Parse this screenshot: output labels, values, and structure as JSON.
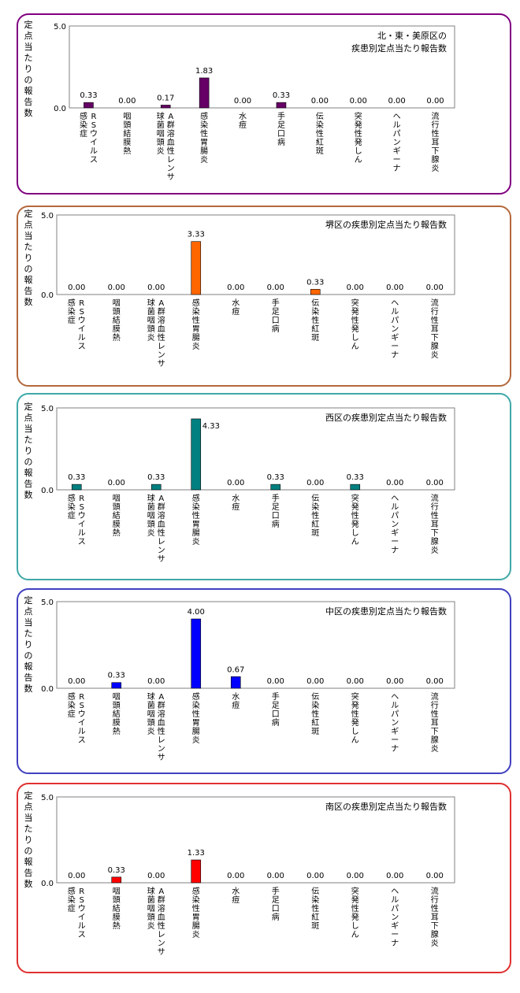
{
  "y_axis_title": "定点当たりの報告数",
  "chart_data": [
    {
      "type": "bar",
      "title": "北・東・美原区の疾患別定点当たり報告数",
      "title_lines": [
        "北・東・美原区の",
        "疾患別定点当たり報告数"
      ],
      "border_color": "#800080",
      "bar_color": "#660066",
      "ylim": [
        0,
        5.0
      ],
      "ytick_labels": [
        "5.0",
        "0.0"
      ],
      "categories": [
        "RSウイルス感染症",
        "咽頭結膜熱",
        "A群溶血性レンサ球菌咽頭炎",
        "感染性胃腸炎",
        "水痘",
        "手足口病",
        "伝染性紅斑",
        "突発性発しん",
        "ヘルパンギーナ",
        "流行性耳下腺炎"
      ],
      "category_lines": [
        [
          "RSウイルス",
          "感染症"
        ],
        [
          "咽頭結膜熱"
        ],
        [
          "A群溶血性レンサ",
          "球菌咽頭炎"
        ],
        [
          "感染性胃腸炎"
        ],
        [
          "水痘"
        ],
        [
          "手足口病"
        ],
        [
          "伝染性紅斑"
        ],
        [
          "突発性発しん"
        ],
        [
          "ヘルパンギーナ"
        ],
        [
          "流行性耳下腺炎"
        ]
      ],
      "values": [
        0.33,
        0.0,
        0.17,
        1.83,
        0.0,
        0.33,
        0.0,
        0.0,
        0.0,
        0.0
      ],
      "value_labels": [
        "0.33",
        "0.00",
        "0.17",
        "1.83",
        "0.00",
        "0.33",
        "0.00",
        "0.00",
        "0.00",
        "0.00"
      ]
    },
    {
      "type": "bar",
      "title": "堺区の疾患別定点当たり報告数",
      "title_lines": [
        "堺区の疾患別定点当たり報告数"
      ],
      "border_color": "#b4683c",
      "bar_color": "#ff6600",
      "ylim": [
        0,
        5.0
      ],
      "ytick_labels": [
        "5.0",
        "0.0"
      ],
      "categories": [
        "RSウイルス感染症",
        "咽頭結膜熱",
        "A群溶血性レンサ球菌咽頭炎",
        "感染性胃腸炎",
        "水痘",
        "手足口病",
        "伝染性紅斑",
        "突発性発しん",
        "ヘルパンギーナ",
        "流行性耳下腺炎"
      ],
      "category_lines": [
        [
          "RSウイルス",
          "感染症"
        ],
        [
          "咽頭結膜熱"
        ],
        [
          "A群溶血性レンサ",
          "球菌咽頭炎"
        ],
        [
          "感染性胃腸炎"
        ],
        [
          "水痘"
        ],
        [
          "手足口病"
        ],
        [
          "伝染性紅斑"
        ],
        [
          "突発性発しん"
        ],
        [
          "ヘルパンギーナ"
        ],
        [
          "流行性耳下腺炎"
        ]
      ],
      "values": [
        0.0,
        0.0,
        0.0,
        3.33,
        0.0,
        0.0,
        0.33,
        0.0,
        0.0,
        0.0
      ],
      "value_labels": [
        "0.00",
        "0.00",
        "0.00",
        "3.33",
        "0.00",
        "0.00",
        "0.33",
        "0.00",
        "0.00",
        "0.00"
      ]
    },
    {
      "type": "bar",
      "title": "西区の疾患別定点当たり報告数",
      "title_lines": [
        "西区の疾患別定点当たり報告数"
      ],
      "border_color": "#40a8a8",
      "bar_color": "#008080",
      "ylim": [
        0,
        5.0
      ],
      "ytick_labels": [
        "5.0",
        "0.0"
      ],
      "categories": [
        "RSウイルス感染症",
        "咽頭結膜熱",
        "A群溶血性レンサ球菌咽頭炎",
        "感染性胃腸炎",
        "水痘",
        "手足口病",
        "伝染性紅斑",
        "突発性発しん",
        "ヘルパンギーナ",
        "流行性耳下腺炎"
      ],
      "category_lines": [
        [
          "RSウイルス",
          "感染症"
        ],
        [
          "咽頭結膜熱"
        ],
        [
          "A群溶血性レンサ",
          "球菌咽頭炎"
        ],
        [
          "感染性胃腸炎"
        ],
        [
          "水痘"
        ],
        [
          "手足口病"
        ],
        [
          "伝染性紅斑"
        ],
        [
          "突発性発しん"
        ],
        [
          "ヘルパンギーナ"
        ],
        [
          "流行性耳下腺炎"
        ]
      ],
      "values": [
        0.33,
        0.0,
        0.33,
        4.33,
        0.0,
        0.33,
        0.0,
        0.33,
        0.0,
        0.0
      ],
      "value_labels": [
        "0.33",
        "0.00",
        "0.33",
        "4.33",
        "0.00",
        "0.33",
        "0.00",
        "0.33",
        "0.00",
        "0.00"
      ]
    },
    {
      "type": "bar",
      "title": "中区の疾患別定点当たり報告数",
      "title_lines": [
        "中区の疾患別定点当たり報告数"
      ],
      "border_color": "#4040c0",
      "bar_color": "#0000ff",
      "ylim": [
        0,
        5.0
      ],
      "ytick_labels": [
        "5.0",
        "0.0"
      ],
      "categories": [
        "RSウイルス感染症",
        "咽頭結膜熱",
        "A群溶血性レンサ球菌咽頭炎",
        "感染性胃腸炎",
        "水痘",
        "手足口病",
        "伝染性紅斑",
        "突発性発しん",
        "ヘルパンギーナ",
        "流行性耳下腺炎"
      ],
      "category_lines": [
        [
          "RSウイルス",
          "感染症"
        ],
        [
          "咽頭結膜熱"
        ],
        [
          "A群溶血性レンサ",
          "球菌咽頭炎"
        ],
        [
          "感染性胃腸炎"
        ],
        [
          "水痘"
        ],
        [
          "手足口病"
        ],
        [
          "伝染性紅斑"
        ],
        [
          "突発性発しん"
        ],
        [
          "ヘルパンギーナ"
        ],
        [
          "流行性耳下腺炎"
        ]
      ],
      "values": [
        0.0,
        0.33,
        0.0,
        4.0,
        0.67,
        0.0,
        0.0,
        0.0,
        0.0,
        0.0
      ],
      "value_labels": [
        "0.00",
        "0.33",
        "0.00",
        "4.00",
        "0.67",
        "0.00",
        "0.00",
        "0.00",
        "0.00",
        "0.00"
      ]
    },
    {
      "type": "bar",
      "title": "南区の疾患別定点当たり報告数",
      "title_lines": [
        "南区の疾患別定点当たり報告数"
      ],
      "border_color": "#e03030",
      "bar_color": "#ff0000",
      "ylim": [
        0,
        5.0
      ],
      "ytick_labels": [
        "5.0",
        "0.0"
      ],
      "categories": [
        "RSウイルス感染症",
        "咽頭結膜熱",
        "A群溶血性レンサ球菌咽頭炎",
        "感染性胃腸炎",
        "水痘",
        "手足口病",
        "伝染性紅斑",
        "突発性発しん",
        "ヘルパンギーナ",
        "流行性耳下腺炎"
      ],
      "category_lines": [
        [
          "RSウイルス",
          "感染症"
        ],
        [
          "咽頭結膜熱"
        ],
        [
          "A群溶血性レンサ",
          "球菌咽頭炎"
        ],
        [
          "感染性胃腸炎"
        ],
        [
          "水痘"
        ],
        [
          "手足口病"
        ],
        [
          "伝染性紅斑"
        ],
        [
          "突発性発しん"
        ],
        [
          "ヘルパンギーナ"
        ],
        [
          "流行性耳下腺炎"
        ]
      ],
      "values": [
        0.0,
        0.33,
        0.0,
        1.33,
        0.0,
        0.0,
        0.0,
        0.0,
        0.0,
        0.0
      ],
      "value_labels": [
        "0.00",
        "0.33",
        "0.00",
        "1.33",
        "0.00",
        "0.00",
        "0.00",
        "0.00",
        "0.00",
        "0.00"
      ]
    }
  ]
}
